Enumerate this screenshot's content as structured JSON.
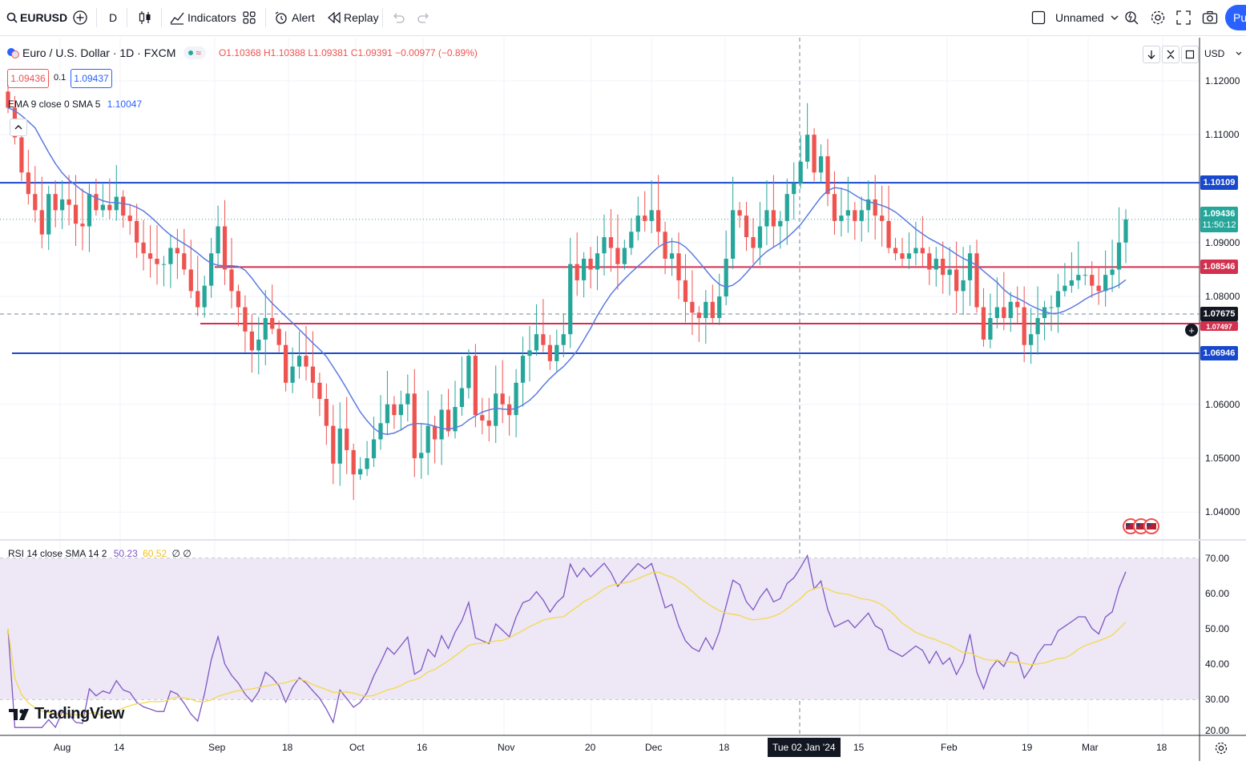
{
  "toolbar": {
    "symbol": "EURUSD",
    "interval": "D",
    "indicators": "Indicators",
    "alert": "Alert",
    "replay": "Replay",
    "layout_name": "Unnamed",
    "publish": "Pu"
  },
  "legend": {
    "title": "Euro / U.S. Dollar · 1D · FXCM",
    "ohlc": "O1.10368  H1.10388  L1.09381  C1.09391  −0.00977 (−0.89%)",
    "sell_price": "1.09436",
    "spread": "0.1",
    "buy_price": "1.09437",
    "ema_label": "EMA 9 close 0 SMA 5",
    "ema_value": "1.10047",
    "rsi_label": "RSI 14 close SMA 14 2",
    "rsi_value": "50.23",
    "rsi_sma_value": "60.52",
    "rsi_extra": "∅ ∅"
  },
  "axis": {
    "currency": "USD",
    "price_ticks": [
      "1.12000",
      "1.11000",
      "1.09000",
      "1.08000",
      "1.06000",
      "1.05000",
      "1.04000"
    ],
    "rsi_ticks": [
      "70.00",
      "60.00",
      "50.00",
      "40.00",
      "30.00",
      "20.00"
    ],
    "time_ticks": [
      "Aug",
      "14",
      "Sep",
      "18",
      "Oct",
      "16",
      "Nov",
      "20",
      "Dec",
      "18",
      "15",
      "Feb",
      "19",
      "Mar",
      "18"
    ],
    "crosshair_date": "Tue 02 Jan '24"
  },
  "tags": {
    "level_top": "1.10109",
    "current_price": "1.09436",
    "countdown": "11:50:12",
    "level_mid": "1.08546",
    "crosshair_price": "1.07675",
    "level_low_hidden": "1.07497",
    "level_bottom": "1.06946"
  },
  "brand": "TradingView",
  "colors": {
    "up": "#26a69a",
    "down": "#ef5350",
    "blue_line": "#1848cc",
    "red_line": "#d32f4f",
    "ema": "#5b7be0",
    "rsi": "#7e57c2",
    "rsi_sma": "#f5d94a",
    "rsi_band": "#ede7f6"
  },
  "chart_data": {
    "type": "candlestick",
    "title": "Euro / U.S. Dollar · 1D · FXCM",
    "price_range": [
      1.035,
      1.128
    ],
    "horizontal_levels": [
      {
        "price": 1.10109,
        "color": "blue"
      },
      {
        "price": 1.08546,
        "color": "red"
      },
      {
        "price": 1.07497,
        "color": "red"
      },
      {
        "price": 1.06946,
        "color": "blue"
      }
    ],
    "closes": [
      1.115,
      1.1095,
      1.103,
      1.099,
      1.096,
      1.0915,
      1.099,
      1.096,
      1.098,
      1.097,
      1.0935,
      1.093,
      1.099,
      1.096,
      1.097,
      1.096,
      1.0985,
      1.095,
      1.094,
      1.09,
      1.088,
      1.087,
      1.086,
      1.086,
      1.089,
      1.088,
      1.085,
      1.081,
      1.078,
      1.082,
      1.088,
      1.093,
      1.085,
      1.081,
      1.078,
      1.0735,
      1.07,
      1.072,
      1.076,
      1.074,
      1.071,
      1.064,
      1.067,
      1.069,
      1.067,
      1.064,
      1.061,
      1.056,
      1.049,
      1.0555,
      1.0515,
      1.047,
      1.048,
      1.05,
      1.0535,
      1.0565,
      1.06,
      1.058,
      1.06,
      1.062,
      1.05,
      1.051,
      1.056,
      1.0535,
      1.059,
      1.055,
      1.0595,
      1.063,
      1.069,
      1.058,
      1.057,
      1.056,
      1.062,
      1.06,
      1.058,
      1.064,
      1.069,
      1.07,
      1.073,
      1.071,
      1.068,
      1.071,
      1.073,
      1.086,
      1.083,
      1.087,
      1.085,
      1.088,
      1.091,
      1.089,
      1.086,
      1.089,
      1.092,
      1.095,
      1.094,
      1.096,
      1.092,
      1.087,
      1.088,
      1.083,
      1.079,
      1.077,
      1.076,
      1.079,
      1.076,
      1.08,
      1.087,
      1.096,
      1.095,
      1.091,
      1.089,
      1.093,
      1.096,
      1.093,
      1.094,
      1.099,
      1.101,
      1.105,
      1.11,
      1.103,
      1.106,
      1.099,
      1.094,
      1.095,
      1.096,
      1.094,
      1.096,
      1.098,
      1.095,
      1.094,
      1.089,
      1.088,
      1.087,
      1.088,
      1.089,
      1.088,
      1.085,
      1.087,
      1.084,
      1.085,
      1.081,
      1.083,
      1.088,
      1.078,
      1.072,
      1.076,
      1.078,
      1.076,
      1.079,
      1.078,
      1.071,
      1.073,
      1.076,
      1.078,
      1.078,
      1.081,
      1.082,
      1.083,
      1.084,
      1.084,
      1.082,
      1.081,
      1.084,
      1.085,
      1.09,
      1.0943
    ],
    "rsi_range": [
      20,
      75
    ],
    "rsi_levels": [
      70,
      50,
      30
    ],
    "rsi_last": 50.23,
    "rsi_sma_last": 60.52
  }
}
